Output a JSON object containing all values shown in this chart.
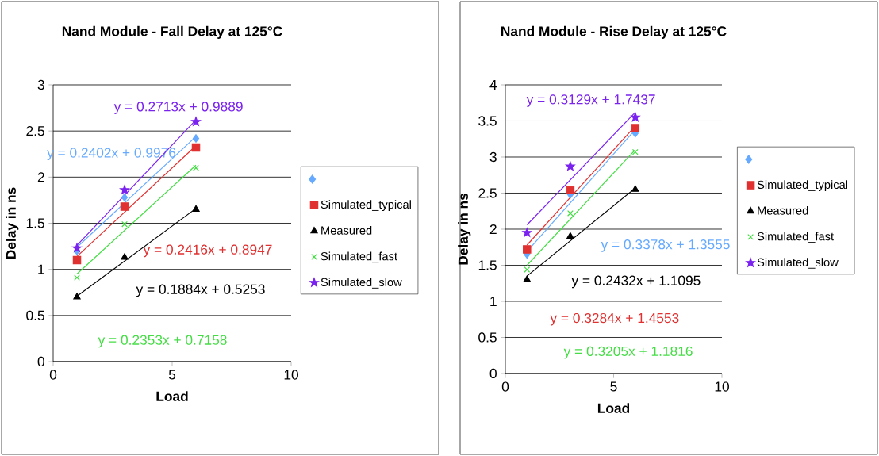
{
  "chart_data": [
    {
      "type": "scatter",
      "title": "Nand Module - Fall Delay at 125°C",
      "xlabel": "Load",
      "ylabel": "Delay in ns",
      "xlim": [
        0,
        10
      ],
      "xticks": [
        0,
        5,
        10
      ],
      "ylim": [
        0,
        3
      ],
      "yticks": [
        0,
        0.5,
        1,
        1.5,
        2,
        2.5,
        3
      ],
      "grid": "y",
      "legend": "right",
      "annotations": [
        "y = 0.2402x + 0.9976",
        "y = 0.2416x + 0.8947",
        "y = 0.1884x + 0.5253",
        "y = 0.2353x + 0.7158",
        "y = 0.2713x + 0.9889"
      ],
      "series": [
        {
          "color": "#66aaff",
          "marker": "diamond",
          "x": [
            1,
            3,
            6
          ],
          "values": [
            1.2,
            1.78,
            2.42
          ]
        },
        {
          "name": "Simulated_typical",
          "color": "#e03030",
          "marker": "square",
          "x": [
            1,
            3,
            6
          ],
          "values": [
            1.1,
            1.68,
            2.32
          ]
        },
        {
          "name": "Measured",
          "color": "#000000",
          "marker": "triangle",
          "x": [
            1,
            3,
            6
          ],
          "values": [
            0.7,
            1.13,
            1.65
          ]
        },
        {
          "name": "Simulated_fast",
          "color": "#44dd44",
          "marker": "cross",
          "x": [
            1,
            3,
            6
          ],
          "values": [
            0.91,
            1.49,
            2.1
          ]
        },
        {
          "name": "Simulated_slow",
          "color": "#7a22ee",
          "marker": "star",
          "x": [
            1,
            3,
            6
          ],
          "values": [
            1.23,
            1.86,
            2.6
          ]
        },
        {
          "type": "line",
          "color": "#66aaff",
          "x": [
            1,
            6
          ],
          "values": [
            1.24,
            2.44
          ]
        },
        {
          "type": "line",
          "color": "#e03030",
          "x": [
            1,
            6
          ],
          "values": [
            1.14,
            2.34
          ]
        },
        {
          "type": "line",
          "color": "#000000",
          "x": [
            1,
            6
          ],
          "values": [
            0.71,
            1.66
          ]
        },
        {
          "type": "line",
          "color": "#44dd44",
          "x": [
            1,
            6
          ],
          "values": [
            0.95,
            2.13
          ]
        },
        {
          "type": "line",
          "color": "#7a22ee",
          "x": [
            1,
            6
          ],
          "values": [
            1.26,
            2.62
          ]
        }
      ]
    },
    {
      "type": "scatter",
      "title": "Nand Module - Rise Delay at 125°C",
      "xlabel": "Load",
      "ylabel": "Delay in ns",
      "xlim": [
        0,
        10
      ],
      "xticks": [
        0,
        5,
        10
      ],
      "ylim": [
        0,
        4
      ],
      "yticks": [
        0,
        0.5,
        1,
        1.5,
        2,
        2.5,
        3,
        3.5,
        4
      ],
      "grid": "y",
      "legend": "right",
      "annotations": [
        "y = 0.3378x + 1.3555",
        "y = 0.3284x + 1.4553",
        "y = 0.2432x + 1.1095",
        "y = 0.3205x + 1.1816",
        "y = 0.3129x + 1.7437"
      ],
      "series": [
        {
          "color": "#66aaff",
          "marker": "diamond",
          "x": [
            1,
            3,
            6
          ],
          "values": [
            1.65,
            2.48,
            3.33
          ]
        },
        {
          "name": "Simulated_typical",
          "color": "#e03030",
          "marker": "square",
          "x": [
            1,
            3,
            6
          ],
          "values": [
            1.72,
            2.54,
            3.4
          ]
        },
        {
          "name": "Measured",
          "color": "#000000",
          "marker": "triangle",
          "x": [
            1,
            3,
            6
          ],
          "values": [
            1.3,
            1.9,
            2.55
          ]
        },
        {
          "name": "Simulated_fast",
          "color": "#44dd44",
          "marker": "cross",
          "x": [
            1,
            3,
            6
          ],
          "values": [
            1.44,
            2.22,
            3.07
          ]
        },
        {
          "name": "Simulated_slow",
          "color": "#7a22ee",
          "marker": "star",
          "x": [
            1,
            3,
            6
          ],
          "values": [
            1.95,
            2.87,
            3.55
          ]
        },
        {
          "type": "line",
          "color": "#66aaff",
          "x": [
            1,
            6
          ],
          "values": [
            1.69,
            3.38
          ]
        },
        {
          "type": "line",
          "color": "#e03030",
          "x": [
            1,
            6
          ],
          "values": [
            1.78,
            3.43
          ]
        },
        {
          "type": "line",
          "color": "#000000",
          "x": [
            1,
            6
          ],
          "values": [
            1.35,
            2.57
          ]
        },
        {
          "type": "line",
          "color": "#44dd44",
          "x": [
            1,
            6
          ],
          "values": [
            1.5,
            3.1
          ]
        },
        {
          "type": "line",
          "color": "#7a22ee",
          "x": [
            1,
            6
          ],
          "values": [
            2.06,
            3.62
          ]
        }
      ]
    }
  ]
}
